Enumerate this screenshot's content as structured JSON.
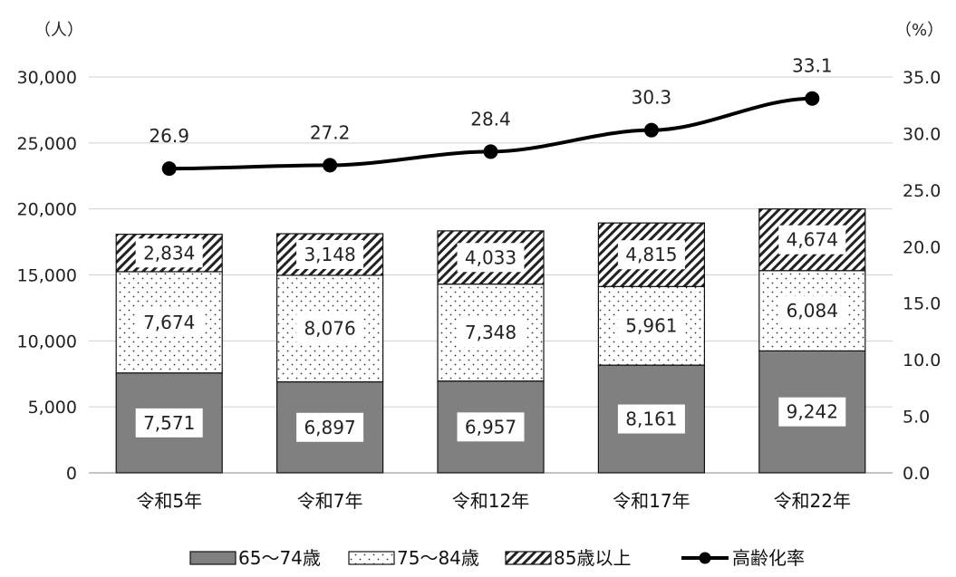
{
  "chart_data": {
    "type": "bar",
    "stacked": true,
    "left_unit": "（人）",
    "right_unit": "（%）",
    "categories": [
      "令和5年",
      "令和7年",
      "令和12年",
      "令和17年",
      "令和22年"
    ],
    "series": [
      {
        "name": "65～74歳",
        "values": [
          7571,
          6897,
          6957,
          8161,
          9242
        ],
        "labels": [
          "7,571",
          "6,897",
          "6,957",
          "8,161",
          "9,242"
        ],
        "color": "#808080"
      },
      {
        "name": "75～84歳",
        "values": [
          7674,
          8076,
          7348,
          5961,
          6084
        ],
        "labels": [
          "7,674",
          "8,076",
          "7,348",
          "5,961",
          "6,084"
        ],
        "color": "#ffffff"
      },
      {
        "name": "85歳以上",
        "values": [
          2834,
          3148,
          4033,
          4815,
          4674
        ],
        "labels": [
          "2,834",
          "3,148",
          "4,033",
          "4,815",
          "4,674"
        ],
        "color": "#ffffff"
      }
    ],
    "line": {
      "name": "高齢化率",
      "values": [
        26.9,
        27.2,
        28.4,
        30.3,
        33.1
      ],
      "labels": [
        "26.9",
        "27.2",
        "28.4",
        "30.3",
        "33.1"
      ],
      "color": "#000000"
    },
    "ylim": [
      0,
      30000
    ],
    "y_ticks": [
      "0",
      "5,000",
      "10,000",
      "15,000",
      "20,000",
      "25,000",
      "30,000"
    ],
    "y2lim": [
      0,
      35
    ],
    "y2_ticks": [
      "0.0",
      "5.0",
      "10.0",
      "15.0",
      "20.0",
      "25.0",
      "30.0",
      "35.0"
    ],
    "grid": true,
    "legend_position": "bottom"
  }
}
